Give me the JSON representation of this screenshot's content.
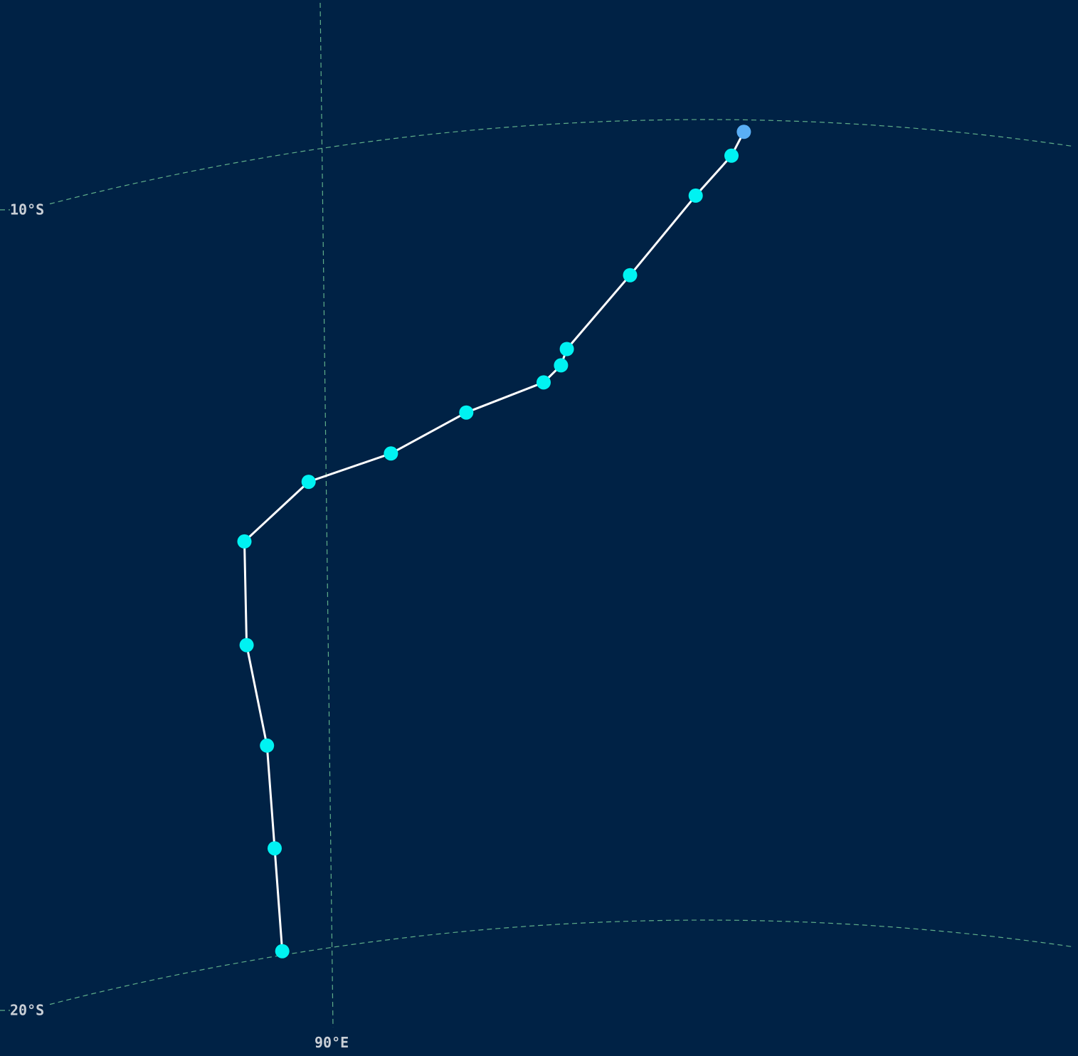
{
  "map": {
    "graticule": {
      "latitudes": [
        {
          "lat": -10,
          "label": "10°S"
        },
        {
          "lat": -20,
          "label": "20°S"
        }
      ],
      "longitudes": [
        {
          "lon": 90,
          "label": "90°E"
        }
      ]
    },
    "track": {
      "line_color": "#ffffff",
      "points": [
        {
          "lat": -10.15,
          "lon": 96.93,
          "color": "#5aaef5"
        },
        {
          "lat": -10.45,
          "lon": 96.72,
          "color": "#00f2f2"
        },
        {
          "lat": -10.95,
          "lon": 96.12,
          "color": "#00f2f2"
        },
        {
          "lat": -11.93,
          "lon": 95.02,
          "color": "#00f2f2"
        },
        {
          "lat": -12.82,
          "lon": 93.96,
          "color": "#00f2f2"
        },
        {
          "lat": -13.02,
          "lon": 93.86,
          "color": "#00f2f2"
        },
        {
          "lat": -13.22,
          "lon": 93.57,
          "color": "#00f2f2"
        },
        {
          "lat": -13.52,
          "lon": 92.29,
          "color": "#00f2f2"
        },
        {
          "lat": -13.93,
          "lon": 91.04,
          "color": "#00f2f2"
        },
        {
          "lat": -14.14,
          "lon": 89.68,
          "color": "#00f2f2"
        },
        {
          "lat": -14.75,
          "lon": 88.61,
          "color": "#00f2f2"
        },
        {
          "lat": -16.05,
          "lon": 88.62,
          "color": "#00f2f2"
        },
        {
          "lat": -17.35,
          "lon": 88.93,
          "color": "#00f2f2"
        },
        {
          "lat": -18.65,
          "lon": 89.03,
          "color": "#00f2f2"
        },
        {
          "lat": -19.95,
          "lon": 89.13,
          "color": "#00f2f2"
        }
      ]
    }
  }
}
